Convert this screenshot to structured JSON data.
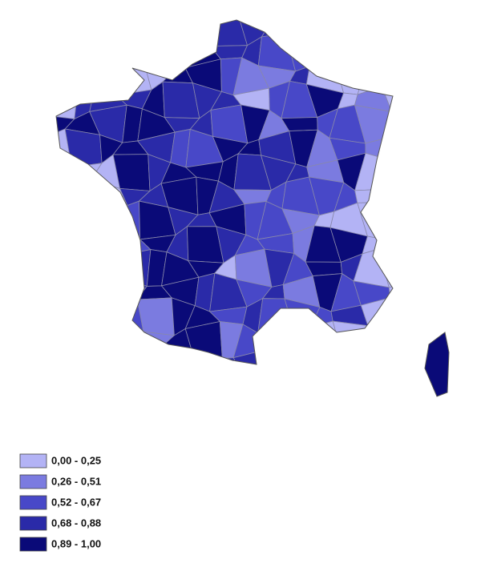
{
  "legend": {
    "items": [
      {
        "label": "0,00 - 0,25",
        "color": "#b3b3f5"
      },
      {
        "label": "0,26 - 0,51",
        "color": "#7b7be0"
      },
      {
        "label": "0,52 - 0,67",
        "color": "#4848c8"
      },
      {
        "label": "0,68 - 0,88",
        "color": "#2a2aa8"
      },
      {
        "label": "0,89 - 1,00",
        "color": "#0a0a78"
      }
    ]
  }
}
